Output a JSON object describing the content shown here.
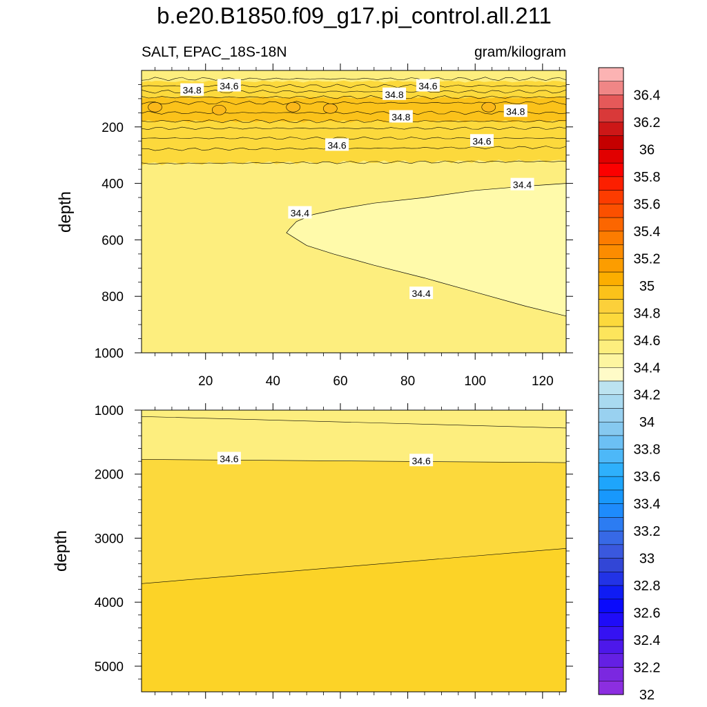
{
  "title": "b.e20.B1850.f09_g17.pi_control.all.211",
  "left_string": "SALT, EPAC_18S-18N",
  "right_string": "gram/kilogram",
  "chart_data": [
    {
      "type": "contour",
      "panel": "upper",
      "ylabel": "depth",
      "xlim": [
        1,
        127
      ],
      "ylim": [
        1000,
        0
      ],
      "x_ticks": [
        20,
        40,
        60,
        80,
        100,
        120
      ],
      "x_tick_labels": [
        "20",
        "40",
        "60",
        "80",
        "100",
        "120"
      ],
      "y_ticks": [
        200,
        400,
        600,
        800,
        1000
      ],
      "y_tick_labels": [
        "200",
        "400",
        "600",
        "800",
        "1000"
      ],
      "fill_colors": {
        "34.2-34.4": "#fffaaa",
        "34.4-34.6": "#fdee7e",
        "34.6-34.8": "#fcd93c",
        "34.8-35.0": "#fbc21a"
      },
      "contour_lines": [
        {
          "level": 34.4,
          "depth_at_x": [
            [
              45,
              575
            ],
            [
              60,
              495
            ],
            [
              80,
              460
            ],
            [
              100,
              425
            ],
            [
              127,
              400
            ]
          ],
          "lower_branch": [
            [
              45,
              575
            ],
            [
              70,
              700
            ],
            [
              100,
              790
            ],
            [
              127,
              870
            ]
          ]
        },
        {
          "level": 34.6,
          "depth_at_x": [
            [
              1,
              330
            ],
            [
              127,
              320
            ]
          ]
        },
        {
          "level": 34.8,
          "depth_at_x": [
            [
              1,
              180
            ],
            [
              127,
              180
            ]
          ]
        }
      ],
      "contour_labels": [
        "34.8",
        "34.6",
        "34.8",
        "34.6",
        "34.8",
        "34.8",
        "34.6",
        "34.6",
        "34.4",
        "34.4",
        "34.4"
      ]
    },
    {
      "type": "contour",
      "panel": "lower",
      "ylabel": "depth",
      "xlim": [
        1,
        127
      ],
      "ylim": [
        5500,
        1000
      ],
      "y_ticks": [
        1000,
        2000,
        3000,
        4000,
        5000
      ],
      "y_tick_labels": [
        "1000",
        "2000",
        "3000",
        "4000",
        "5000"
      ],
      "fill_colors": {
        "34.4-34.6": "#fdee7e",
        "34.6-34.8": "#fcd93c"
      },
      "contour_lines": [
        {
          "level": 34.4,
          "depth_at_x": [
            [
              1,
              1100
            ],
            [
              127,
              1280
            ]
          ]
        },
        {
          "level": 34.6,
          "depth_at_x": [
            [
              1,
              1770
            ],
            [
              127,
              1820
            ]
          ]
        },
        {
          "level": 34.7,
          "depth_at_x": [
            [
              1,
              3710
            ],
            [
              127,
              3160
            ]
          ]
        }
      ],
      "contour_labels": [
        "34.6",
        "34.6"
      ]
    }
  ],
  "colorbar": {
    "labels": [
      "36.4",
      "36.2",
      "36",
      "35.8",
      "35.6",
      "35.4",
      "35.2",
      "35",
      "34.8",
      "34.6",
      "34.4",
      "34.2",
      "34",
      "33.8",
      "33.6",
      "33.4",
      "33.2",
      "33",
      "32.8",
      "32.6",
      "32.4",
      "32.2",
      "32"
    ],
    "colors": [
      "#fcb3b3",
      "#f08686",
      "#e55959",
      "#d93939",
      "#cd1717",
      "#c50000",
      "#e10000",
      "#fc0000",
      "#fc1f00",
      "#fc3c00",
      "#fc5000",
      "#fc6600",
      "#fc7c00",
      "#fc8c00",
      "#fc9d00",
      "#fcae00",
      "#fbc21a",
      "#fcd03a",
      "#fcd93c",
      "#fde55c",
      "#fdee7e",
      "#fdf5a0",
      "#fffbc8",
      "#bce3f0",
      "#a9daf0",
      "#99d1f0",
      "#86c9f0",
      "#6cc0f4",
      "#4db8f8",
      "#2eb0fc",
      "#1ea5fc",
      "#1898fc",
      "#1e8bfc",
      "#2c7cf2",
      "#3769e6",
      "#3a58de",
      "#3246d6",
      "#2233e6",
      "#0f1cf4",
      "#0a0afc",
      "#1f0cf8",
      "#3512f2",
      "#4d18ea",
      "#6420e4",
      "#7b28e0",
      "#8c2ee0"
    ]
  }
}
